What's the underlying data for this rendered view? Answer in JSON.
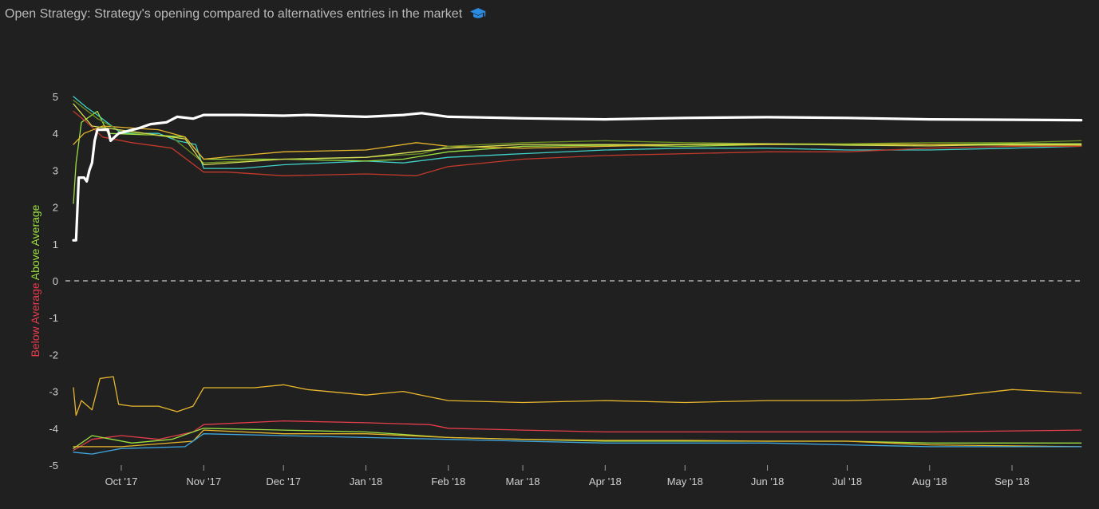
{
  "header": {
    "title": "Open Strategy: Strategy's opening compared to alternatives entries in the market",
    "icon": "graduation-cap-icon",
    "icon_color": "#2a8be3"
  },
  "chart_data": {
    "type": "line",
    "title": "Open Strategy: Strategy's opening compared to alternatives entries in the market",
    "ylabel": {
      "negative": "Below Average",
      "positive": "Above Average",
      "negative_color": "#e43d4b",
      "positive_color": "#9be040"
    },
    "ylim": [
      -5,
      5
    ],
    "yticks": [
      -5,
      -4,
      -3,
      -2,
      -1,
      0,
      1,
      2,
      3,
      4,
      5
    ],
    "xlim": [
      "2017-09-10",
      "2018-09-28"
    ],
    "xticks": [
      {
        "date": "2017-10-01",
        "label": "Oct '17"
      },
      {
        "date": "2017-11-01",
        "label": "Nov '17"
      },
      {
        "date": "2017-12-01",
        "label": "Dec '17"
      },
      {
        "date": "2018-01-01",
        "label": "Jan '18"
      },
      {
        "date": "2018-02-01",
        "label": "Feb '18"
      },
      {
        "date": "2018-03-01",
        "label": "Mar '18"
      },
      {
        "date": "2018-04-01",
        "label": "Apr '18"
      },
      {
        "date": "2018-05-01",
        "label": "May '18"
      },
      {
        "date": "2018-06-01",
        "label": "Jun '18"
      },
      {
        "date": "2018-07-01",
        "label": "Jul '18"
      },
      {
        "date": "2018-08-01",
        "label": "Aug '18"
      },
      {
        "date": "2018-09-01",
        "label": "Sep '18"
      }
    ],
    "zero_line": {
      "value": 0,
      "style": "dashed",
      "color": "#8a8a8a"
    },
    "grid": false,
    "legend": "none",
    "series": [
      {
        "color": "#ffffff",
        "width": 3.2,
        "points": [
          [
            "2017-09-13",
            1.1
          ],
          [
            "2017-09-14",
            1.1
          ],
          [
            "2017-09-15",
            2.8
          ],
          [
            "2017-09-17",
            2.8
          ],
          [
            "2017-09-18",
            2.7
          ],
          [
            "2017-09-19",
            3.0
          ],
          [
            "2017-09-20",
            3.2
          ],
          [
            "2017-09-21",
            3.8
          ],
          [
            "2017-09-22",
            4.1
          ],
          [
            "2017-09-26",
            4.1
          ],
          [
            "2017-09-27",
            3.8
          ],
          [
            "2017-09-30",
            4.0
          ],
          [
            "2017-10-08",
            4.15
          ],
          [
            "2017-10-12",
            4.25
          ],
          [
            "2017-10-18",
            4.3
          ],
          [
            "2017-10-22",
            4.45
          ],
          [
            "2017-10-28",
            4.4
          ],
          [
            "2017-11-01",
            4.5
          ],
          [
            "2017-11-15",
            4.5
          ],
          [
            "2017-12-01",
            4.48
          ],
          [
            "2017-12-10",
            4.5
          ],
          [
            "2017-12-18",
            4.48
          ],
          [
            "2018-01-01",
            4.45
          ],
          [
            "2018-01-15",
            4.5
          ],
          [
            "2018-01-22",
            4.55
          ],
          [
            "2018-02-01",
            4.45
          ],
          [
            "2018-02-15",
            4.43
          ],
          [
            "2018-03-01",
            4.41
          ],
          [
            "2018-04-01",
            4.38
          ],
          [
            "2018-05-01",
            4.42
          ],
          [
            "2018-06-01",
            4.44
          ],
          [
            "2018-07-01",
            4.42
          ],
          [
            "2018-08-01",
            4.38
          ],
          [
            "2018-09-01",
            4.37
          ],
          [
            "2018-09-27",
            4.36
          ]
        ]
      },
      {
        "color": "#3fd0c9",
        "width": 1.3,
        "points": [
          [
            "2017-09-13",
            5.0
          ],
          [
            "2017-09-18",
            4.7
          ],
          [
            "2017-09-22",
            4.5
          ],
          [
            "2017-10-01",
            4.0
          ],
          [
            "2017-10-15",
            4.0
          ],
          [
            "2017-10-22",
            3.8
          ],
          [
            "2017-10-29",
            3.7
          ],
          [
            "2017-11-01",
            3.05
          ],
          [
            "2017-11-15",
            3.05
          ],
          [
            "2017-12-01",
            3.15
          ],
          [
            "2018-01-01",
            3.25
          ],
          [
            "2018-01-15",
            3.2
          ],
          [
            "2018-02-01",
            3.35
          ],
          [
            "2018-03-01",
            3.45
          ],
          [
            "2018-04-01",
            3.55
          ],
          [
            "2018-05-01",
            3.6
          ],
          [
            "2018-06-01",
            3.6
          ],
          [
            "2018-07-01",
            3.55
          ],
          [
            "2018-08-01",
            3.55
          ],
          [
            "2018-09-01",
            3.6
          ],
          [
            "2018-09-27",
            3.65
          ]
        ]
      },
      {
        "color": "#9be040",
        "width": 1.3,
        "points": [
          [
            "2017-09-13",
            2.1
          ],
          [
            "2017-09-14",
            3.2
          ],
          [
            "2017-09-16",
            4.3
          ],
          [
            "2017-09-22",
            4.6
          ],
          [
            "2017-09-26",
            4.0
          ],
          [
            "2017-10-15",
            3.95
          ],
          [
            "2017-10-25",
            3.9
          ],
          [
            "2017-11-01",
            3.3
          ],
          [
            "2017-12-01",
            3.3
          ],
          [
            "2018-01-01",
            3.25
          ],
          [
            "2018-01-15",
            3.3
          ],
          [
            "2018-02-01",
            3.5
          ],
          [
            "2018-03-01",
            3.65
          ],
          [
            "2018-04-01",
            3.68
          ],
          [
            "2018-05-01",
            3.65
          ],
          [
            "2018-06-01",
            3.7
          ],
          [
            "2018-07-01",
            3.7
          ],
          [
            "2018-08-01",
            3.7
          ],
          [
            "2018-09-01",
            3.72
          ],
          [
            "2018-09-27",
            3.72
          ]
        ]
      },
      {
        "color": "#c0392b",
        "width": 1.3,
        "points": [
          [
            "2017-09-13",
            4.6
          ],
          [
            "2017-09-18",
            4.3
          ],
          [
            "2017-09-24",
            3.9
          ],
          [
            "2017-10-05",
            3.75
          ],
          [
            "2017-10-20",
            3.6
          ],
          [
            "2017-11-01",
            2.95
          ],
          [
            "2017-11-10",
            2.95
          ],
          [
            "2017-12-01",
            2.85
          ],
          [
            "2018-01-01",
            2.9
          ],
          [
            "2018-01-20",
            2.85
          ],
          [
            "2018-02-01",
            3.1
          ],
          [
            "2018-03-01",
            3.3
          ],
          [
            "2018-04-01",
            3.4
          ],
          [
            "2018-05-01",
            3.45
          ],
          [
            "2018-06-01",
            3.5
          ],
          [
            "2018-07-01",
            3.5
          ],
          [
            "2018-08-01",
            3.6
          ],
          [
            "2018-09-01",
            3.65
          ],
          [
            "2018-09-27",
            3.65
          ]
        ]
      },
      {
        "color": "#e8b62c",
        "width": 1.3,
        "points": [
          [
            "2017-09-13",
            3.7
          ],
          [
            "2017-09-17",
            4.0
          ],
          [
            "2017-09-24",
            4.2
          ],
          [
            "2017-10-15",
            4.1
          ],
          [
            "2017-10-25",
            3.9
          ],
          [
            "2017-11-01",
            3.3
          ],
          [
            "2017-11-15",
            3.4
          ],
          [
            "2017-12-01",
            3.5
          ],
          [
            "2018-01-01",
            3.55
          ],
          [
            "2018-01-20",
            3.75
          ],
          [
            "2018-02-01",
            3.65
          ],
          [
            "2018-03-01",
            3.6
          ],
          [
            "2018-04-01",
            3.65
          ],
          [
            "2018-05-01",
            3.7
          ],
          [
            "2018-06-01",
            3.7
          ],
          [
            "2018-07-01",
            3.72
          ],
          [
            "2018-08-01",
            3.7
          ],
          [
            "2018-09-01",
            3.68
          ],
          [
            "2018-09-27",
            3.68
          ]
        ]
      },
      {
        "color": "#6a8f22",
        "width": 1.3,
        "points": [
          [
            "2017-09-13",
            4.9
          ],
          [
            "2017-09-22",
            4.4
          ],
          [
            "2017-10-01",
            4.05
          ],
          [
            "2017-10-20",
            3.9
          ],
          [
            "2017-11-01",
            3.2
          ],
          [
            "2017-12-01",
            3.3
          ],
          [
            "2018-01-01",
            3.35
          ],
          [
            "2018-01-22",
            3.45
          ],
          [
            "2018-02-01",
            3.65
          ],
          [
            "2018-03-01",
            3.75
          ],
          [
            "2018-04-01",
            3.8
          ],
          [
            "2018-05-01",
            3.75
          ],
          [
            "2018-06-01",
            3.72
          ],
          [
            "2018-07-01",
            3.72
          ],
          [
            "2018-08-01",
            3.75
          ],
          [
            "2018-09-01",
            3.75
          ],
          [
            "2018-09-27",
            3.8
          ]
        ]
      },
      {
        "color": "#d6dc55",
        "width": 1.3,
        "points": [
          [
            "2017-09-13",
            4.8
          ],
          [
            "2017-09-20",
            4.2
          ],
          [
            "2017-10-05",
            4.05
          ],
          [
            "2017-10-25",
            3.85
          ],
          [
            "2017-11-01",
            3.15
          ],
          [
            "2017-12-01",
            3.3
          ],
          [
            "2018-01-01",
            3.35
          ],
          [
            "2018-02-01",
            3.6
          ],
          [
            "2018-03-01",
            3.7
          ],
          [
            "2018-04-01",
            3.7
          ],
          [
            "2018-05-01",
            3.7
          ],
          [
            "2018-06-01",
            3.72
          ],
          [
            "2018-07-01",
            3.68
          ],
          [
            "2018-08-01",
            3.66
          ],
          [
            "2018-09-01",
            3.7
          ],
          [
            "2018-09-27",
            3.7
          ]
        ]
      },
      {
        "color": "#e8b62c",
        "width": 1.3,
        "points": [
          [
            "2017-09-13",
            -2.9
          ],
          [
            "2017-09-14",
            -3.65
          ],
          [
            "2017-09-16",
            -3.25
          ],
          [
            "2017-09-20",
            -3.5
          ],
          [
            "2017-09-23",
            -2.65
          ],
          [
            "2017-09-28",
            -2.6
          ],
          [
            "2017-09-30",
            -3.35
          ],
          [
            "2017-10-05",
            -3.4
          ],
          [
            "2017-10-15",
            -3.4
          ],
          [
            "2017-10-22",
            -3.55
          ],
          [
            "2017-10-28",
            -3.4
          ],
          [
            "2017-11-01",
            -2.9
          ],
          [
            "2017-11-20",
            -2.9
          ],
          [
            "2017-12-01",
            -2.82
          ],
          [
            "2017-12-10",
            -2.95
          ],
          [
            "2018-01-01",
            -3.1
          ],
          [
            "2018-01-15",
            -3.0
          ],
          [
            "2018-01-25",
            -3.15
          ],
          [
            "2018-02-01",
            -3.25
          ],
          [
            "2018-03-01",
            -3.3
          ],
          [
            "2018-04-01",
            -3.25
          ],
          [
            "2018-05-01",
            -3.3
          ],
          [
            "2018-06-01",
            -3.25
          ],
          [
            "2018-07-01",
            -3.25
          ],
          [
            "2018-08-01",
            -3.2
          ],
          [
            "2018-09-01",
            -2.95
          ],
          [
            "2018-09-27",
            -3.05
          ]
        ]
      },
      {
        "color": "#e43d4b",
        "width": 1.3,
        "points": [
          [
            "2017-09-13",
            -4.6
          ],
          [
            "2017-09-20",
            -4.3
          ],
          [
            "2017-10-01",
            -4.2
          ],
          [
            "2017-10-15",
            -4.3
          ],
          [
            "2017-10-28",
            -4.1
          ],
          [
            "2017-11-01",
            -3.9
          ],
          [
            "2017-12-01",
            -3.8
          ],
          [
            "2018-01-01",
            -3.85
          ],
          [
            "2018-01-25",
            -3.9
          ],
          [
            "2018-02-01",
            -4.0
          ],
          [
            "2018-03-01",
            -4.05
          ],
          [
            "2018-04-01",
            -4.1
          ],
          [
            "2018-05-01",
            -4.1
          ],
          [
            "2018-06-01",
            -4.1
          ],
          [
            "2018-07-01",
            -4.1
          ],
          [
            "2018-08-01",
            -4.1
          ],
          [
            "2018-09-27",
            -4.05
          ]
        ]
      },
      {
        "color": "#9be040",
        "width": 1.3,
        "points": [
          [
            "2017-09-13",
            -4.55
          ],
          [
            "2017-09-20",
            -4.2
          ],
          [
            "2017-10-05",
            -4.4
          ],
          [
            "2017-10-20",
            -4.3
          ],
          [
            "2017-11-01",
            -4.0
          ],
          [
            "2017-12-01",
            -4.05
          ],
          [
            "2018-01-01",
            -4.1
          ],
          [
            "2018-02-01",
            -4.25
          ],
          [
            "2018-03-01",
            -4.3
          ],
          [
            "2018-04-01",
            -4.35
          ],
          [
            "2018-05-01",
            -4.35
          ],
          [
            "2018-06-01",
            -4.35
          ],
          [
            "2018-07-01",
            -4.35
          ],
          [
            "2018-08-01",
            -4.4
          ],
          [
            "2018-09-27",
            -4.4
          ]
        ]
      },
      {
        "color": "#e8b62c",
        "width": 1.3,
        "points": [
          [
            "2017-09-13",
            -4.5
          ],
          [
            "2017-10-01",
            -4.5
          ],
          [
            "2017-10-28",
            -4.35
          ],
          [
            "2017-11-01",
            -4.05
          ],
          [
            "2017-12-01",
            -4.15
          ],
          [
            "2018-01-01",
            -4.15
          ],
          [
            "2018-02-01",
            -4.25
          ],
          [
            "2018-03-01",
            -4.3
          ],
          [
            "2018-04-01",
            -4.33
          ],
          [
            "2018-05-01",
            -4.33
          ],
          [
            "2018-06-01",
            -4.35
          ],
          [
            "2018-07-01",
            -4.35
          ],
          [
            "2018-08-01",
            -4.45
          ],
          [
            "2018-09-27",
            -4.5
          ]
        ]
      },
      {
        "color": "#3fa7e0",
        "width": 1.3,
        "points": [
          [
            "2017-09-13",
            -4.65
          ],
          [
            "2017-09-20",
            -4.7
          ],
          [
            "2017-10-01",
            -4.55
          ],
          [
            "2017-10-25",
            -4.5
          ],
          [
            "2017-11-01",
            -4.15
          ],
          [
            "2017-12-01",
            -4.2
          ],
          [
            "2018-01-01",
            -4.25
          ],
          [
            "2018-02-01",
            -4.3
          ],
          [
            "2018-03-01",
            -4.35
          ],
          [
            "2018-04-01",
            -4.4
          ],
          [
            "2018-05-01",
            -4.4
          ],
          [
            "2018-06-01",
            -4.4
          ],
          [
            "2018-07-01",
            -4.45
          ],
          [
            "2018-08-01",
            -4.5
          ],
          [
            "2018-09-27",
            -4.5
          ]
        ]
      }
    ]
  }
}
